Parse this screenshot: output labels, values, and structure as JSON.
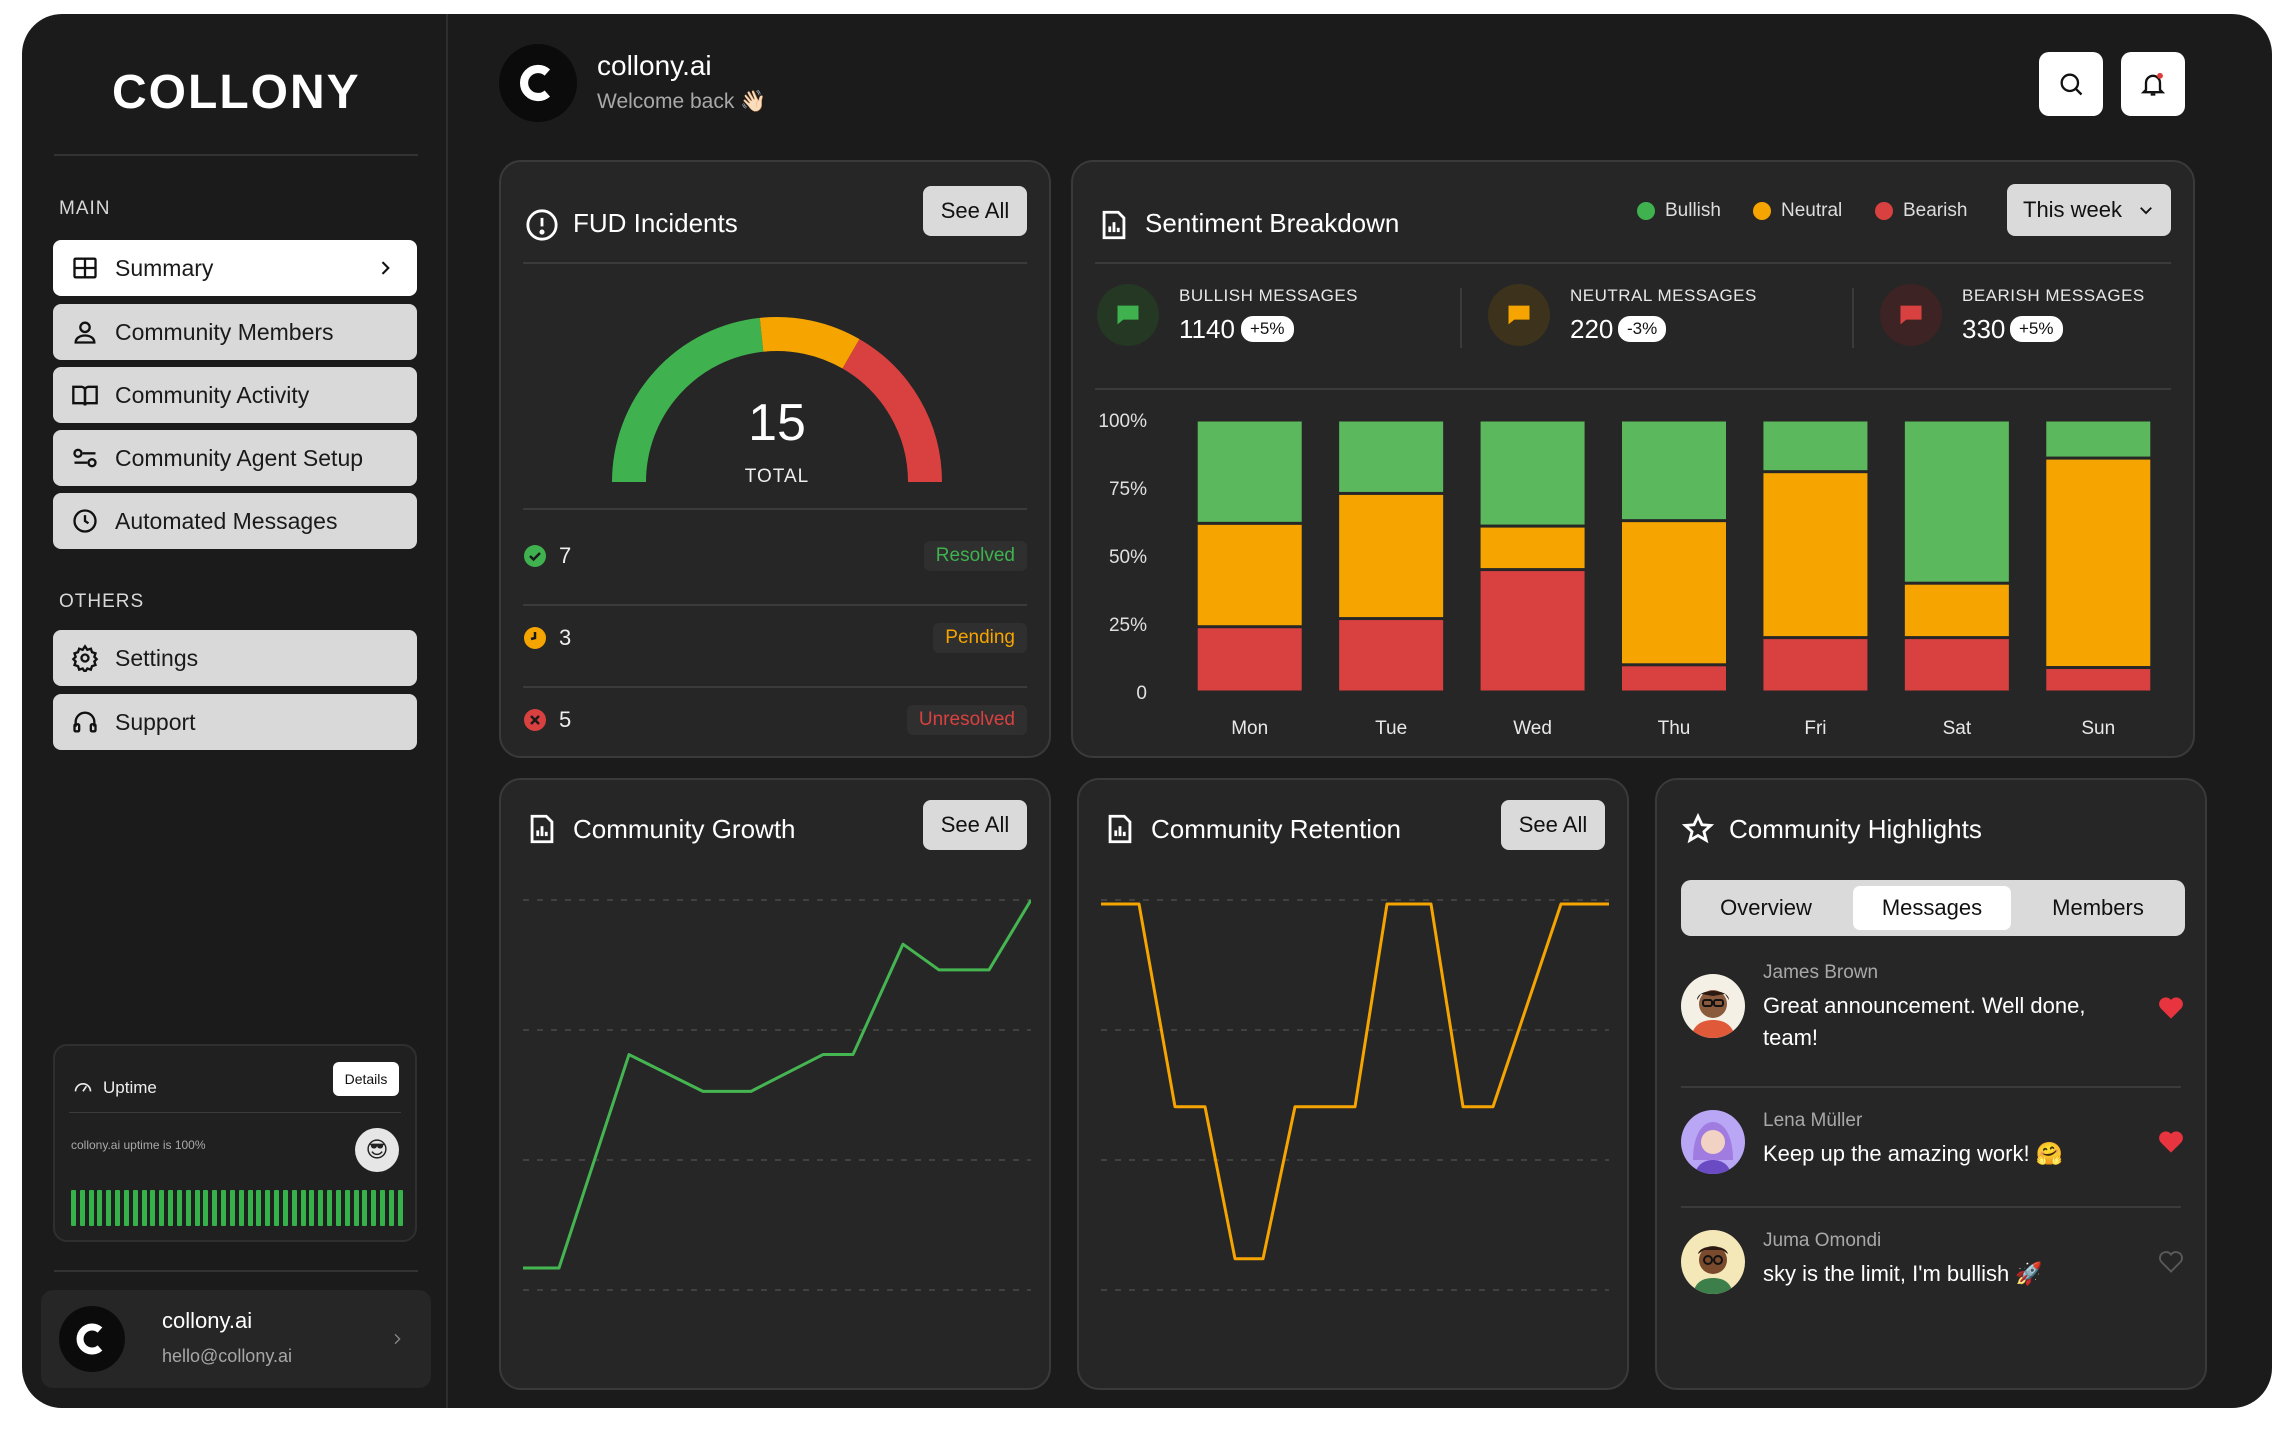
{
  "brand": {
    "logo_text": "COLLONY"
  },
  "sidebar": {
    "main_label": "MAIN",
    "main_items": [
      {
        "label": "Summary",
        "icon": "grid-icon"
      },
      {
        "label": "Community Members",
        "icon": "user-icon"
      },
      {
        "label": "Community Activity",
        "icon": "book-icon"
      },
      {
        "label": "Community Agent Setup",
        "icon": "toggle-icon"
      },
      {
        "label": "Automated Messages",
        "icon": "clock-icon"
      }
    ],
    "others_label": "OTHERS",
    "other_items": [
      {
        "label": "Settings",
        "icon": "gear-icon"
      },
      {
        "label": "Support",
        "icon": "headphones-icon"
      }
    ],
    "uptime": {
      "title": "Uptime",
      "details_label": "Details",
      "message": "collony.ai uptime is 100%",
      "percent": 100
    },
    "profile": {
      "name": "collony.ai",
      "email": "hello@collony.ai"
    }
  },
  "header": {
    "name": "collony.ai",
    "subtitle": "Welcome back 👋🏻"
  },
  "fud": {
    "title": "FUD Incidents",
    "see_all": "See All",
    "total": "15",
    "total_label": "TOTAL",
    "gauge": {
      "resolved": 7,
      "pending": 3,
      "unresolved": 5
    },
    "rows": [
      {
        "count": "7",
        "status": "Resolved",
        "color": "#3fb24f"
      },
      {
        "count": "3",
        "status": "Pending",
        "color": "#f5a400"
      },
      {
        "count": "5",
        "status": "Unresolved",
        "color": "#d94040"
      }
    ]
  },
  "sentiment": {
    "title": "Sentiment Breakdown",
    "legend": [
      {
        "label": "Bullish",
        "color": "#3fb24f"
      },
      {
        "label": "Neutral",
        "color": "#f5a400"
      },
      {
        "label": "Bearish",
        "color": "#d94040"
      }
    ],
    "period": "This week",
    "stats": [
      {
        "label": "BULLISH MESSAGES",
        "value": "1140",
        "change": "+5%"
      },
      {
        "label": "NEUTRAL  MESSAGES",
        "value": "220",
        "change": "-3%"
      },
      {
        "label": "BEARISH  MESSAGES",
        "value": "330",
        "change": "+5%"
      }
    ]
  },
  "growth": {
    "title": "Community Growth",
    "see_all": "See All"
  },
  "retention": {
    "title": "Community Retention",
    "see_all": "See All"
  },
  "highlights": {
    "title": "Community Highlights",
    "tabs": [
      "Overview",
      "Messages",
      "Members"
    ],
    "active_tab": "Messages",
    "items": [
      {
        "name": "James Brown",
        "text": "Great announcement. Well done, team!",
        "liked": true
      },
      {
        "name": "Lena Müller",
        "text": "Keep up the amazing work! 🤗",
        "liked": true
      },
      {
        "name": "Juma Omondi",
        "text": "sky is the limit, I'm bullish 🚀",
        "liked": false
      }
    ]
  },
  "chart_data": [
    {
      "type": "bar",
      "title": "Sentiment Breakdown",
      "stacked": true,
      "categories": [
        "Mon",
        "Tue",
        "Wed",
        "Thu",
        "Fri",
        "Sat",
        "Sun"
      ],
      "ylim": [
        0,
        100
      ],
      "yticks": [
        "0",
        "25%",
        "50%",
        "75%",
        "100%"
      ],
      "series": [
        {
          "name": "Bearish",
          "color": "#d94040",
          "values": [
            24,
            27,
            45,
            10,
            20,
            20,
            9
          ]
        },
        {
          "name": "Neutral",
          "color": "#f5a400",
          "values": [
            38,
            46,
            16,
            53,
            61,
            20,
            77
          ]
        },
        {
          "name": "Bullish",
          "color": "#5cb85c",
          "values": [
            38,
            27,
            39,
            37,
            19,
            60,
            14
          ]
        }
      ]
    },
    {
      "type": "line",
      "title": "Community Growth",
      "color": "#45b552",
      "values": [
        0,
        0,
        0.58,
        0.48,
        0.48,
        0.58,
        0.58,
        0.88,
        0.81,
        0.81,
        1.0
      ],
      "ylim": [
        0,
        1
      ],
      "grid": true
    },
    {
      "type": "line",
      "title": "Community Retention",
      "color": "#f5a400",
      "values": [
        1,
        1,
        0.44,
        0.44,
        0.02,
        0.02,
        0.44,
        0.44,
        1,
        1,
        0.44,
        0.44,
        1,
        1
      ],
      "ylim": [
        0,
        1
      ],
      "grid": true
    }
  ]
}
